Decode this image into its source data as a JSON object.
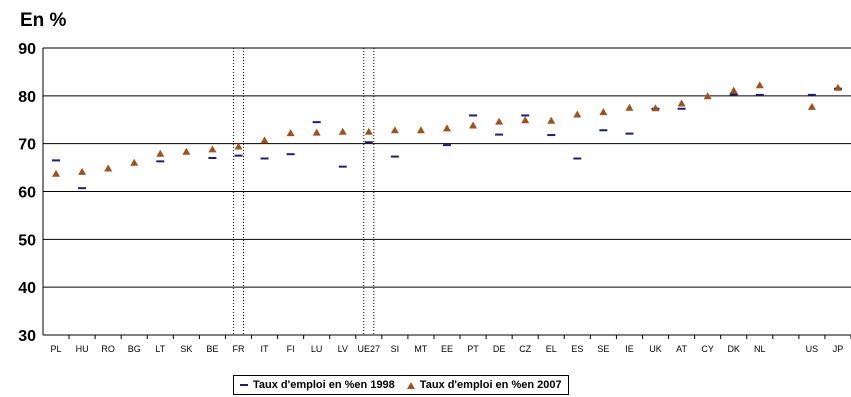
{
  "chart_data": {
    "type": "scatter",
    "ylabel": "En %",
    "ylim": [
      30,
      90
    ],
    "yticks": [
      "30",
      "40",
      "50",
      "60",
      "70",
      "80",
      "90"
    ],
    "grid": true,
    "legend_position": "bottom",
    "categories": [
      "PL",
      "HU",
      "RO",
      "BG",
      "LT",
      "SK",
      "BE",
      "FR",
      "IT",
      "FI",
      "LU",
      "LV",
      "UE27",
      "SI",
      "MT",
      "EE",
      "PT",
      "DE",
      "CZ",
      "EL",
      "ES",
      "SE",
      "IE",
      "UK",
      "AT",
      "CY",
      "DK",
      "NL",
      "",
      "US",
      "JP"
    ],
    "highlighted_categories": [
      "FR",
      "UE27"
    ],
    "series": [
      {
        "name": "Taux d'emploi en %en 1998",
        "marker": "dash",
        "color": "#1c1f7a",
        "values": [
          66.5,
          60.7,
          null,
          null,
          66.3,
          null,
          67.0,
          67.5,
          66.9,
          67.8,
          74.5,
          65.2,
          70.3,
          67.3,
          null,
          69.7,
          75.9,
          71.9,
          75.9,
          71.8,
          66.9,
          72.8,
          72.1,
          77.3,
          77.3,
          null,
          80.3,
          80.2,
          null,
          80.2,
          81.5
        ]
      },
      {
        "name": "Taux d'emploi en %en 2007",
        "marker": "triangle",
        "color": "#a0521d",
        "values": [
          63.7,
          64.1,
          64.8,
          66.0,
          67.9,
          68.3,
          68.8,
          69.4,
          70.7,
          72.2,
          72.3,
          72.5,
          72.5,
          72.8,
          72.8,
          73.2,
          73.8,
          74.6,
          74.9,
          74.8,
          76.1,
          76.6,
          77.5,
          77.4,
          78.4,
          79.9,
          81.1,
          82.2,
          null,
          77.7,
          81.7
        ]
      }
    ]
  }
}
